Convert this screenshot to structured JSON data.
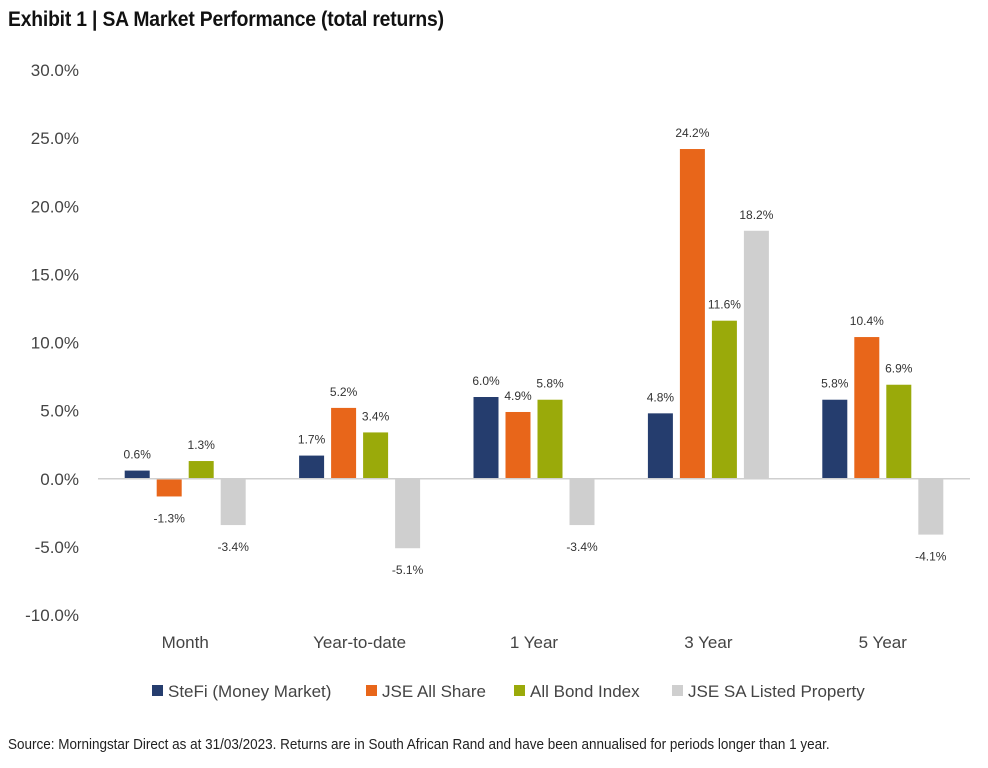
{
  "title": "Exhibit 1 | SA Market Performance (total returns)",
  "source": "Source: Morningstar Direct as at 31/03/2023. Returns are in South African Rand and have been annualised for periods longer than 1 year.",
  "chart_data": {
    "type": "bar",
    "title": "Exhibit 1 | SA Market Performance (total returns)",
    "categories": [
      "Month",
      "Year-to-date",
      "1 Year",
      "3 Year",
      "5 Year"
    ],
    "series": [
      {
        "name": "SteFi (Money Market)",
        "color": "#253d6e",
        "values": [
          0.6,
          1.7,
          6.0,
          4.8,
          5.8
        ]
      },
      {
        "name": "JSE All Share",
        "color": "#e8661a",
        "values": [
          -1.3,
          5.2,
          4.9,
          24.2,
          10.4
        ]
      },
      {
        "name": "All Bond Index",
        "color": "#9aaa0a",
        "values": [
          1.3,
          3.4,
          5.8,
          11.6,
          6.9
        ]
      },
      {
        "name": "JSE SA Listed Property",
        "color": "#cfcfcf",
        "values": [
          -3.4,
          -5.1,
          -3.4,
          18.2,
          -4.1
        ]
      }
    ],
    "ylim": [
      -10,
      30
    ],
    "yticks": [
      "30.0%",
      "25.0%",
      "20.0%",
      "15.0%",
      "10.0%",
      "5.0%",
      "0.0%",
      "-5.0%",
      "-10.0%"
    ],
    "ytick_values": [
      30,
      25,
      20,
      15,
      10,
      5,
      0,
      -5,
      -10
    ],
    "data_labels": [
      [
        "0.6%",
        "1.7%",
        "6.0%",
        "4.8%",
        "5.8%"
      ],
      [
        "-1.3%",
        "5.2%",
        "4.9%",
        "24.2%",
        "10.4%"
      ],
      [
        "1.3%",
        "3.4%",
        "5.8%",
        "11.6%",
        "6.9%"
      ],
      [
        "-3.4%",
        "-5.1%",
        "-3.4%",
        "18.2%",
        "-4.1%"
      ]
    ],
    "grid": false,
    "legend": "bottom"
  }
}
